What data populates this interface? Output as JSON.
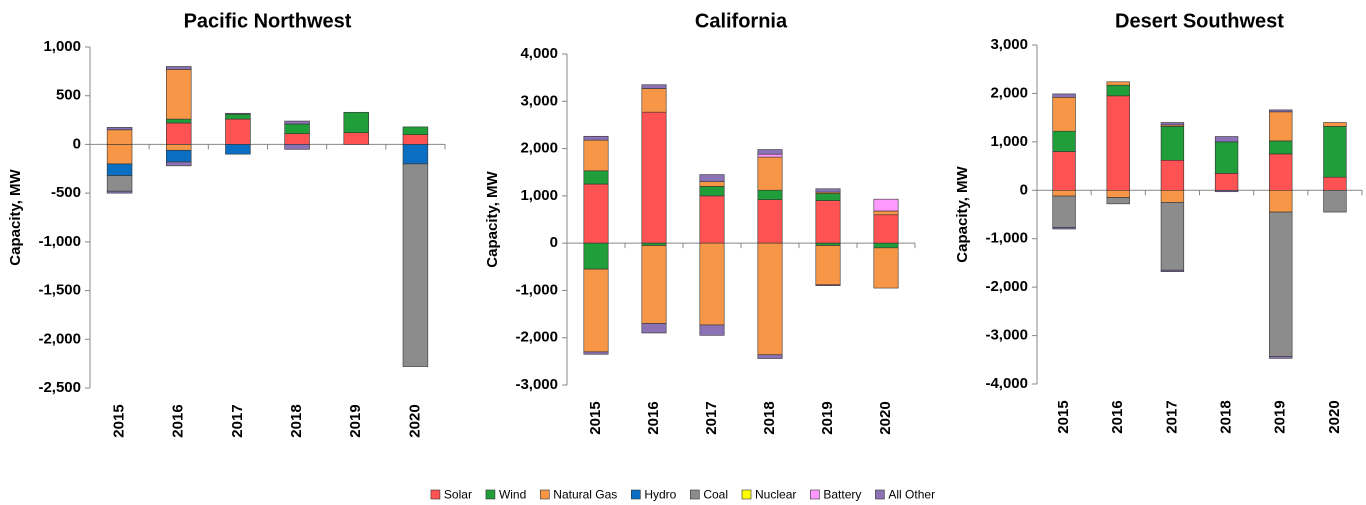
{
  "legend": [
    {
      "name": "Solar",
      "color": "#ff5252"
    },
    {
      "name": "Wind",
      "color": "#1f9e3a"
    },
    {
      "name": "Natural Gas",
      "color": "#f79646"
    },
    {
      "name": "Hydro",
      "color": "#0a6fc2"
    },
    {
      "name": "Coal",
      "color": "#8c8c8c"
    },
    {
      "name": "Nuclear",
      "color": "#ffff00"
    },
    {
      "name": "Battery",
      "color": "#ff99ff"
    },
    {
      "name": "All Other",
      "color": "#8a72b5"
    }
  ],
  "chart_data": [
    {
      "type": "bar",
      "title": "Pacific Northwest",
      "ylabel": "Capacity, MW",
      "categories": [
        "2015",
        "2016",
        "2017",
        "2018",
        "2019",
        "2020"
      ],
      "ylim": [
        -2500,
        1000
      ],
      "yticks": [
        {
          "value": -2500,
          "label": "-2,500"
        },
        {
          "value": -2000,
          "label": "-2,000"
        },
        {
          "value": -1500,
          "label": "-1,500"
        },
        {
          "value": -1000,
          "label": "-1,000"
        },
        -500,
        0,
        500,
        {
          "value": 1000,
          "label": "1,000"
        }
      ],
      "series": [
        {
          "additions": [
            0,
            220,
            260,
            110,
            120,
            100
          ],
          "retirements": [
            0,
            0,
            0,
            0,
            0,
            0
          ]
        },
        {
          "additions": [
            0,
            40,
            50,
            100,
            210,
            80
          ],
          "retirements": [
            0,
            0,
            0,
            0,
            0,
            0
          ]
        },
        {
          "additions": [
            150,
            510,
            0,
            0,
            0,
            0
          ],
          "retirements": [
            -200,
            -60,
            0,
            0,
            0,
            0
          ]
        },
        {
          "additions": [
            0,
            0,
            0,
            0,
            0,
            0
          ],
          "retirements": [
            -120,
            -120,
            -100,
            0,
            0,
            -200
          ]
        },
        {
          "additions": [
            0,
            0,
            0,
            0,
            0,
            0
          ],
          "retirements": [
            -160,
            0,
            0,
            0,
            0,
            -2080
          ]
        },
        {
          "additions": [
            0,
            0,
            0,
            0,
            0,
            0
          ],
          "retirements": [
            0,
            0,
            0,
            0,
            0,
            0
          ]
        },
        {
          "additions": [
            0,
            0,
            0,
            0,
            0,
            0
          ],
          "retirements": [
            0,
            0,
            0,
            0,
            0,
            0
          ]
        },
        {
          "additions": [
            25,
            30,
            10,
            30,
            0,
            0
          ],
          "retirements": [
            -20,
            -40,
            0,
            -50,
            0,
            0
          ]
        }
      ]
    },
    {
      "type": "bar",
      "title": "California",
      "ylabel": "Capacity, MW",
      "categories": [
        "2015",
        "2016",
        "2017",
        "2018",
        "2019",
        "2020"
      ],
      "ylim": [
        -3000,
        4000
      ],
      "yticks": [
        {
          "value": -3000,
          "label": "-3,000"
        },
        {
          "value": -2000,
          "label": "-2,000"
        },
        {
          "value": -1000,
          "label": "-1,000"
        },
        0,
        {
          "value": 1000,
          "label": "1,000"
        },
        {
          "value": 2000,
          "label": "2,000"
        },
        {
          "value": 3000,
          "label": "3,000"
        },
        {
          "value": 4000,
          "label": "4,000"
        }
      ],
      "series": [
        {
          "additions": [
            1250,
            2770,
            1000,
            920,
            900,
            600
          ],
          "retirements": [
            0,
            0,
            0,
            0,
            0,
            0
          ]
        },
        {
          "additions": [
            280,
            0,
            200,
            200,
            150,
            0
          ],
          "retirements": [
            -550,
            -50,
            0,
            0,
            -50,
            -100
          ]
        },
        {
          "additions": [
            650,
            500,
            100,
            700,
            30,
            80
          ],
          "retirements": [
            -1750,
            -1650,
            -1730,
            -2360,
            -830,
            -850
          ]
        },
        {
          "additions": [
            0,
            0,
            0,
            0,
            0,
            0
          ],
          "retirements": [
            0,
            0,
            0,
            0,
            0,
            0
          ]
        },
        {
          "additions": [
            0,
            0,
            0,
            0,
            0,
            0
          ],
          "retirements": [
            0,
            0,
            0,
            0,
            0,
            0
          ]
        },
        {
          "additions": [
            0,
            0,
            0,
            0,
            0,
            0
          ],
          "retirements": [
            0,
            0,
            0,
            0,
            0,
            0
          ]
        },
        {
          "additions": [
            0,
            0,
            0,
            60,
            0,
            250
          ],
          "retirements": [
            0,
            0,
            0,
            0,
            0,
            0
          ]
        },
        {
          "additions": [
            80,
            80,
            150,
            100,
            70,
            0
          ],
          "retirements": [
            -50,
            -200,
            -220,
            -80,
            -20,
            0
          ]
        }
      ]
    },
    {
      "type": "bar",
      "title": "Desert Southwest",
      "ylabel": "Capacity, MW",
      "categories": [
        "2015",
        "2016",
        "2017",
        "2018",
        "2019",
        "2020"
      ],
      "ylim": [
        -4000,
        3000
      ],
      "yticks": [
        {
          "value": -4000,
          "label": "-4,000"
        },
        {
          "value": -3000,
          "label": "-3,000"
        },
        {
          "value": -2000,
          "label": "-2,000"
        },
        {
          "value": -1000,
          "label": "-1,000"
        },
        0,
        {
          "value": 1000,
          "label": "1,000"
        },
        {
          "value": 2000,
          "label": "2,000"
        },
        {
          "value": 3000,
          "label": "3,000"
        }
      ],
      "series": [
        {
          "additions": [
            800,
            1950,
            620,
            350,
            750,
            270
          ],
          "retirements": [
            0,
            0,
            0,
            0,
            0,
            0
          ]
        },
        {
          "additions": [
            420,
            220,
            700,
            650,
            270,
            1050
          ],
          "retirements": [
            0,
            0,
            0,
            0,
            0,
            0
          ]
        },
        {
          "additions": [
            700,
            70,
            30,
            0,
            600,
            80
          ],
          "retirements": [
            -120,
            -150,
            -250,
            0,
            -450,
            0
          ]
        },
        {
          "additions": [
            0,
            0,
            0,
            0,
            0,
            0
          ],
          "retirements": [
            0,
            0,
            0,
            0,
            0,
            0
          ]
        },
        {
          "additions": [
            0,
            0,
            0,
            0,
            0,
            0
          ],
          "retirements": [
            -650,
            -130,
            -1400,
            0,
            -2980,
            -450
          ]
        },
        {
          "additions": [
            0,
            0,
            0,
            0,
            0,
            0
          ],
          "retirements": [
            0,
            0,
            0,
            0,
            0,
            0
          ]
        },
        {
          "additions": [
            0,
            0,
            0,
            0,
            0,
            0
          ],
          "retirements": [
            0,
            0,
            0,
            0,
            0,
            0
          ]
        },
        {
          "additions": [
            70,
            0,
            50,
            110,
            40,
            0
          ],
          "retirements": [
            -30,
            0,
            -30,
            -30,
            -40,
            0
          ]
        }
      ]
    }
  ]
}
